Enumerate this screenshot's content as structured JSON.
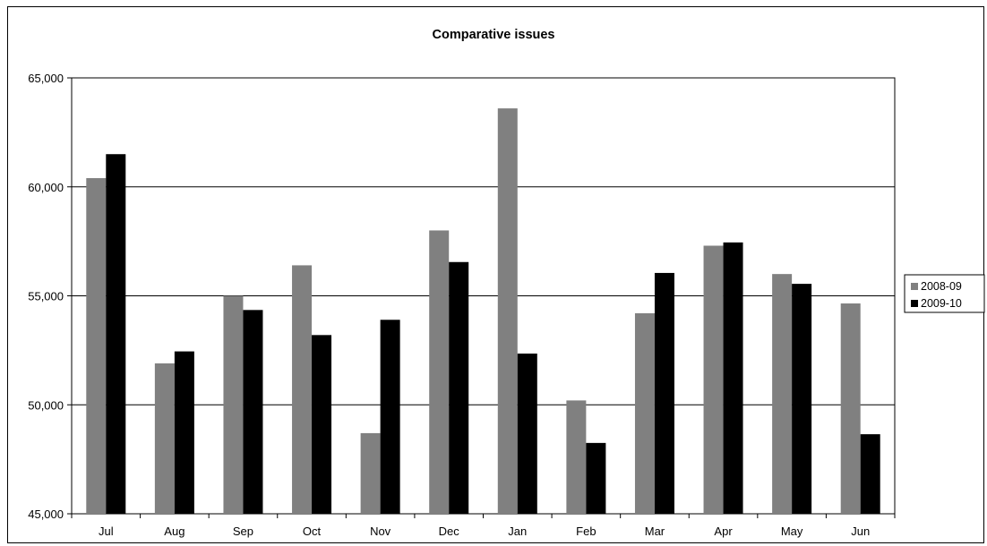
{
  "chart_data": {
    "type": "bar",
    "title": "Comparative issues",
    "xlabel": "",
    "ylabel": "",
    "categories": [
      "Jul",
      "Aug",
      "Sep",
      "Oct",
      "Nov",
      "Dec",
      "Jan",
      "Feb",
      "Mar",
      "Apr",
      "May",
      "Jun"
    ],
    "series": [
      {
        "name": "2008-09",
        "color": "#808080",
        "values": [
          60400,
          51900,
          55000,
          56400,
          48700,
          58000,
          63600,
          50200,
          54200,
          57300,
          56000,
          54650
        ]
      },
      {
        "name": "2009-10",
        "color": "#000000",
        "values": [
          61500,
          52450,
          54350,
          53200,
          53900,
          56550,
          52350,
          48250,
          56050,
          57450,
          55550,
          48650
        ]
      }
    ],
    "ylim": [
      45000,
      65000
    ],
    "yticks": [
      45000,
      50000,
      55000,
      60000,
      65000
    ],
    "ytick_labels": [
      "45,000",
      "50,000",
      "55,000",
      "60,000",
      "65,000"
    ],
    "grid": true,
    "legend_position": "right"
  }
}
